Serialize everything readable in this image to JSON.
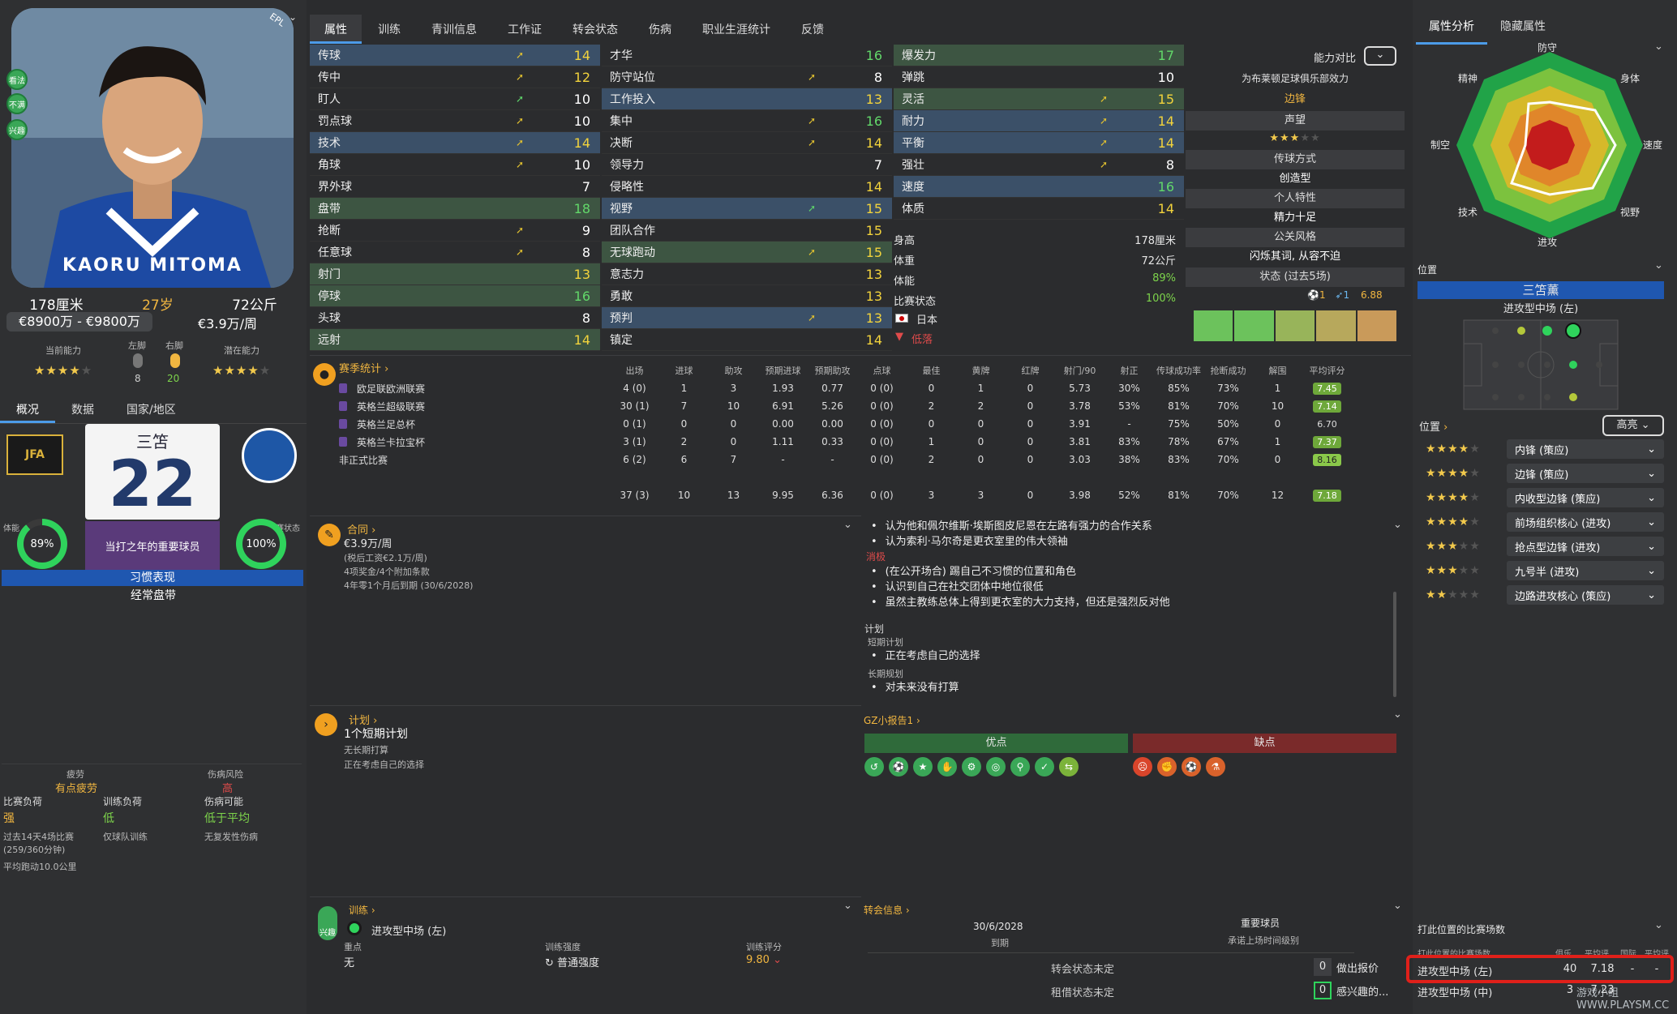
{
  "player": {
    "name_print": "KAORU MITOMA",
    "height": "178厘米",
    "age": "27岁",
    "weight": "72公斤",
    "value": "€8900万 - €9800万",
    "wage": "€3.9万/周",
    "current_ability_label": "当前能力",
    "potential_ability_label": "潜在能力",
    "left_foot_label": "左脚",
    "right_foot_label": "右脚",
    "left_foot_val": "8",
    "right_foot_val": "20",
    "current_stars": "★★★★",
    "current_stars_dim": "★",
    "potential_stars": "★★★★",
    "potential_stars_dim": "★",
    "shirt_name": "三笘",
    "shirt_number": "22",
    "role_text": "当打之年的重要球员",
    "fitness_label": "体能",
    "fitness": "89%",
    "match_form_label": "比赛状态",
    "match_form": "100%",
    "habit_title": "习惯表现",
    "habit": "经常盘带",
    "side_pills": [
      "看法",
      "不满",
      "兴趣"
    ],
    "badge_top": "EPL"
  },
  "left_tabs": [
    "概况",
    "数据",
    "国家/地区"
  ],
  "condition": {
    "fatigue_label": "疲劳",
    "fatigue": "有点疲劳",
    "injury_risk_label": "伤病风险",
    "injury_risk": "高",
    "match_load_label": "比赛负荷",
    "match_load": "强",
    "training_load_label": "训练负荷",
    "training_load": "低",
    "injury_chance_label": "伤病可能",
    "injury_chance": "低于平均",
    "match_load_note1": "过去14天4场比赛",
    "match_load_note2": "(259/360分钟)",
    "training_load_note": "仅球队训练",
    "injury_note": "无复发性伤病",
    "distance": "平均跑动10.0公里"
  },
  "tabs": [
    "属性",
    "训练",
    "青训信息",
    "工作证",
    "转会状态",
    "伤病",
    "职业生涯统计",
    "反馈"
  ],
  "technical": [
    {
      "n": "传球",
      "v": "14",
      "a": "y",
      "hl": "hl"
    },
    {
      "n": "传中",
      "v": "12",
      "a": "y",
      "hl": ""
    },
    {
      "n": "盯人",
      "v": "10",
      "a": "g",
      "hl": ""
    },
    {
      "n": "罚点球",
      "v": "10",
      "a": "y",
      "hl": ""
    },
    {
      "n": "技术",
      "v": "14",
      "a": "y",
      "hl": "hl"
    },
    {
      "n": "角球",
      "v": "10",
      "a": "y",
      "hl": ""
    },
    {
      "n": "界外球",
      "v": "7",
      "a": "",
      "hl": ""
    },
    {
      "n": "盘带",
      "v": "18",
      "a": "",
      "hl": "gh"
    },
    {
      "n": "抢断",
      "v": "9",
      "a": "y",
      "hl": ""
    },
    {
      "n": "任意球",
      "v": "8",
      "a": "y",
      "hl": ""
    },
    {
      "n": "射门",
      "v": "13",
      "a": "",
      "hl": "gh"
    },
    {
      "n": "停球",
      "v": "16",
      "a": "",
      "hl": "gh"
    },
    {
      "n": "头球",
      "v": "8",
      "a": "",
      "hl": ""
    },
    {
      "n": "远射",
      "v": "14",
      "a": "",
      "hl": "gh"
    }
  ],
  "mental": [
    {
      "n": "才华",
      "v": "16",
      "a": "",
      "hl": ""
    },
    {
      "n": "防守站位",
      "v": "8",
      "a": "y",
      "hl": ""
    },
    {
      "n": "工作投入",
      "v": "13",
      "a": "",
      "hl": "hl"
    },
    {
      "n": "集中",
      "v": "16",
      "a": "y",
      "hl": ""
    },
    {
      "n": "决断",
      "v": "14",
      "a": "y",
      "hl": ""
    },
    {
      "n": "领导力",
      "v": "7",
      "a": "",
      "hl": ""
    },
    {
      "n": "侵略性",
      "v": "14",
      "a": "",
      "hl": ""
    },
    {
      "n": "视野",
      "v": "15",
      "a": "g",
      "hl": "hl"
    },
    {
      "n": "团队合作",
      "v": "15",
      "a": "",
      "hl": ""
    },
    {
      "n": "无球跑动",
      "v": "15",
      "a": "y",
      "hl": "gh"
    },
    {
      "n": "意志力",
      "v": "13",
      "a": "",
      "hl": ""
    },
    {
      "n": "勇敢",
      "v": "13",
      "a": "",
      "hl": ""
    },
    {
      "n": "预判",
      "v": "13",
      "a": "y",
      "hl": "hl"
    },
    {
      "n": "镇定",
      "v": "14",
      "a": "",
      "hl": ""
    }
  ],
  "physical": [
    {
      "n": "爆发力",
      "v": "17",
      "a": "",
      "hl": "gh"
    },
    {
      "n": "弹跳",
      "v": "10",
      "a": "",
      "hl": ""
    },
    {
      "n": "灵活",
      "v": "15",
      "a": "y",
      "hl": "gh"
    },
    {
      "n": "耐力",
      "v": "14",
      "a": "y",
      "hl": "hl"
    },
    {
      "n": "平衡",
      "v": "14",
      "a": "y",
      "hl": "hl"
    },
    {
      "n": "强壮",
      "v": "8",
      "a": "y",
      "hl": ""
    },
    {
      "n": "速度",
      "v": "16",
      "a": "",
      "hl": "hl"
    },
    {
      "n": "体质",
      "v": "14",
      "a": "",
      "hl": ""
    }
  ],
  "bio": {
    "height_label": "身高",
    "height": "178厘米",
    "weight_label": "体重",
    "weight": "72公斤",
    "fitness_label": "体能",
    "fitness": "89%",
    "form_label": "比赛状态",
    "form": "100%",
    "nation": "日本",
    "morale": "低落"
  },
  "compare": {
    "label": "能力对比",
    "club_label": "为布莱顿足球俱乐部效力",
    "club_role": "边锋",
    "rep_label": "声望",
    "rep_stars": "★★★",
    "rep_dim": "★★",
    "style_label": "传球方式",
    "style": "创造型",
    "trait_label": "个人特性",
    "trait": "精力十足",
    "pr_label": "公关风格",
    "pr": "闪烁其词, 从容不迫",
    "form_label": "状态 (过去5场)",
    "form_goals": "1",
    "form_assists": "1",
    "form_rating": "6.88"
  },
  "stats": {
    "title": "赛季统计",
    "headers": [
      "出场",
      "进球",
      "助攻",
      "预期进球",
      "预期助攻",
      "点球",
      "最佳",
      "黄牌",
      "红牌",
      "射门/90",
      "射正",
      "传球成功率",
      "抢断成功",
      "解围",
      "平均评分"
    ],
    "rows": [
      {
        "comp": "欧足联欧洲联赛",
        "vals": [
          "4 (0)",
          "1",
          "3",
          "1.93",
          "0.77",
          "0 (0)",
          "0",
          "1",
          "0",
          "5.73",
          "30%",
          "85%",
          "73%",
          "1"
        ],
        "rating": "7.45",
        "rt": ""
      },
      {
        "comp": "英格兰超级联赛",
        "vals": [
          "30 (1)",
          "7",
          "10",
          "6.91",
          "5.26",
          "0 (0)",
          "2",
          "2",
          "0",
          "3.78",
          "53%",
          "81%",
          "70%",
          "10"
        ],
        "rating": "7.14",
        "rt": ""
      },
      {
        "comp": "英格兰足总杯",
        "vals": [
          "0 (1)",
          "0",
          "0",
          "0.00",
          "0.00",
          "0 (0)",
          "0",
          "0",
          "0",
          "3.91",
          "-",
          "75%",
          "50%",
          "0"
        ],
        "rating": "6.70",
        "rt": "gry"
      },
      {
        "comp": "英格兰卡拉宝杯",
        "vals": [
          "3 (1)",
          "2",
          "0",
          "1.11",
          "0.33",
          "0 (0)",
          "1",
          "0",
          "0",
          "3.81",
          "83%",
          "78%",
          "67%",
          "1"
        ],
        "rating": "7.37",
        "rt": ""
      },
      {
        "comp": "非正式比赛",
        "vals": [
          "6 (2)",
          "6",
          "7",
          "-",
          "-",
          "0 (0)",
          "2",
          "0",
          "0",
          "3.03",
          "38%",
          "83%",
          "70%",
          "0"
        ],
        "rating": "8.16",
        "rt": "lg"
      }
    ],
    "total": {
      "vals": [
        "37 (3)",
        "10",
        "13",
        "9.95",
        "6.36",
        "0 (0)",
        "3",
        "3",
        "0",
        "3.98",
        "52%",
        "81%",
        "70%",
        "12"
      ],
      "rating": "7.18"
    }
  },
  "contract": {
    "title": "合同",
    "wage": "€3.9万/周",
    "after_tax": "(税后工资€2.1万/周)",
    "bonus": "4项奖金/4个附加条款",
    "expiry": "4年零1个月后到期 (30/6/2028)"
  },
  "relations": {
    "pos": [
      "认为他和佩尔维斯·埃斯图皮尼恩在左路有强力的合作关系",
      "认为索利·马尔奇是更衣室里的伟大领袖"
    ],
    "neg_label": "消极",
    "neg": [
      "(在公开场合) 踢自己不习惯的位置和角色",
      "认识到自己在社交团体中地位很低",
      "虽然主教练总体上得到更衣室的大力支持，但还是强烈反对他"
    ],
    "plan_label": "计划",
    "short_label": "短期计划",
    "short": "正在考虑自己的选择",
    "long_label": "长期规划",
    "long": "对未来没有打算"
  },
  "plans": {
    "title": "计划",
    "count": "1个短期计划",
    "nolong": "无长期打算",
    "considering": "正在考虑自己的选择"
  },
  "report": {
    "title": "GZ小报告1",
    "pros": "优点",
    "cons": "缺点"
  },
  "training": {
    "title": "训练",
    "role": "进攻型中场 (左)",
    "focus_label": "重点",
    "focus": "无",
    "intensity_label": "训练强度",
    "intensity": "普通强度",
    "rating_label": "训练评分",
    "rating": "9.80",
    "pill": "兴趣"
  },
  "transfer": {
    "title": "转会信息",
    "date": "30/6/2028",
    "date_label": "到期",
    "key": "重要球员",
    "key_note": "承诺上场时间级别",
    "status1": "转会状态未定",
    "status2": "租借状态未定",
    "offers": "0",
    "offers_label": "做出报价",
    "interest": "0",
    "interest_label": "感兴趣的..."
  },
  "right_tabs": [
    "属性分析",
    "隐藏属性"
  ],
  "radar": {
    "labels": [
      "防守",
      "身体",
      "速度",
      "视野",
      "进攻",
      "技术",
      "制空",
      "精神"
    ]
  },
  "position": {
    "title": "位置",
    "main": "三笘薰",
    "main_role": "进攻型中场 (左)",
    "pos_label": "位置",
    "highlight": "高亮"
  },
  "roles": [
    {
      "stars": "★★★★",
      "dim": "★",
      "role": "内锋 (策应)"
    },
    {
      "stars": "★★★★",
      "dim": "★",
      "role": "边锋 (策应)"
    },
    {
      "stars": "★★★★",
      "dim": "★",
      "role": "内收型边锋 (策应)"
    },
    {
      "stars": "★★★★",
      "dim": "★",
      "role": "前场组织核心 (进攻)"
    },
    {
      "stars": "★★★",
      "dim": "★★",
      "role": "抢点型边锋 (进攻)"
    },
    {
      "stars": "★★★",
      "dim": "★★",
      "role": "九号半 (进攻)"
    },
    {
      "stars": "★★",
      "dim": "★★★",
      "role": "边路进攻核心 (策应)"
    }
  ],
  "apps": {
    "title": "打此位置的比赛场数",
    "col0": "打此位置的比赛场数",
    "col1": "俱乐",
    "col2": "平均评",
    "col3": "国际",
    "col4": "平均评",
    "rows": [
      {
        "pos": "进攻型中场 (左)",
        "club": "40",
        "avg": "7.18",
        "intl": "-",
        "iavg": "-"
      },
      {
        "pos": "进攻型中场 (中)",
        "club": "3",
        "avg": "7.23",
        "intl": "",
        "iavg": ""
      }
    ]
  },
  "watermark": "游戏小组 WWW.PLAYSM.CC"
}
